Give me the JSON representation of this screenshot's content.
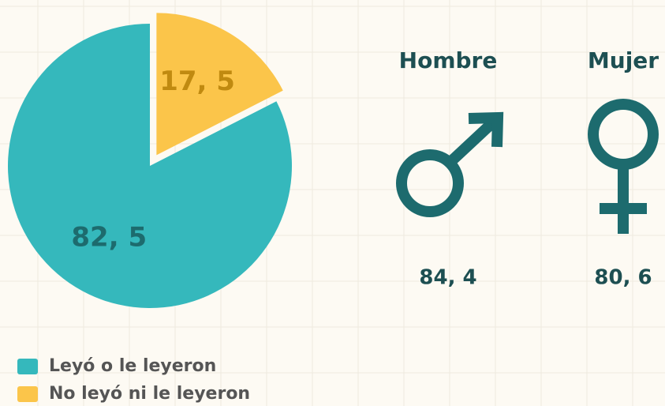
{
  "chart_data": {
    "type": "pie",
    "categories": [
      "Leyó o le leyeron",
      "No leyó ni le leyeron"
    ],
    "values": [
      82.5,
      17.5
    ],
    "value_labels": [
      "82, 5",
      "17, 5"
    ],
    "colors": [
      "#35b8bc",
      "#fbc54a"
    ],
    "label_colors": [
      "#1d6b6e",
      "#c08a10"
    ]
  },
  "gender": {
    "items": [
      {
        "label": "Hombre",
        "value": "84, 4"
      },
      {
        "label": "Mujer",
        "value": "80, 6"
      }
    ]
  }
}
